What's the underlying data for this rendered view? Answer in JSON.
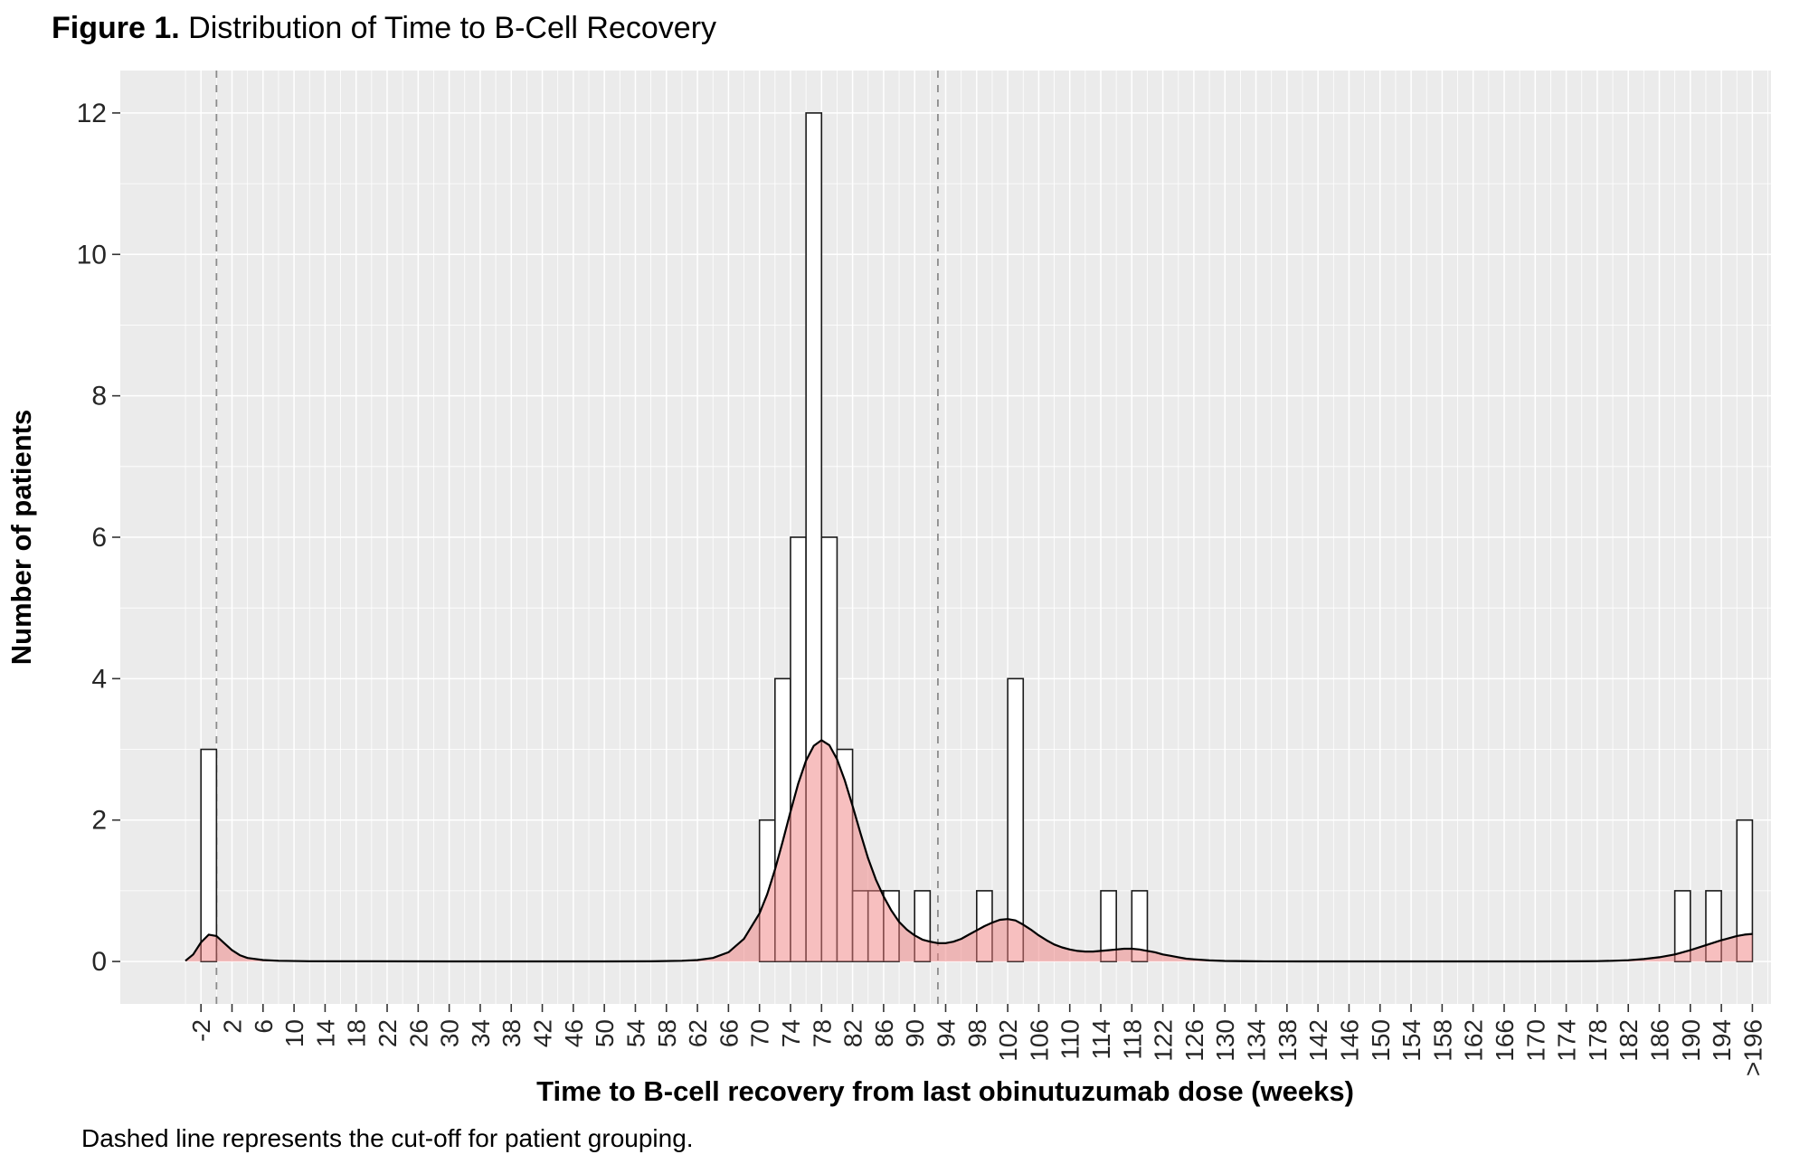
{
  "figure_title": {
    "label": "Figure 1.",
    "text": "Distribution of Time to B-Cell Recovery"
  },
  "footnote": "Dashed line represents the cut-off for patient grouping.",
  "chart_data": {
    "type": "bar",
    "subtype": "histogram_with_density_overlay",
    "title": "Figure 1. Distribution of Time to B-Cell Recovery",
    "xlabel": "Time to B-cell recovery from last obinutuzumab dose (weeks)",
    "ylabel": "Number of patients",
    "bin_width": 2,
    "x_domain": [
      -12.4,
      200.4
    ],
    "y_domain": [
      -0.6,
      12.6
    ],
    "ylim": [
      0,
      12
    ],
    "y_ticks": [
      0,
      2,
      4,
      6,
      8,
      10,
      12
    ],
    "x_tick_values": [
      -2,
      2,
      6,
      10,
      14,
      18,
      22,
      26,
      30,
      34,
      38,
      42,
      46,
      50,
      54,
      58,
      62,
      66,
      70,
      74,
      78,
      82,
      86,
      90,
      94,
      98,
      102,
      106,
      110,
      114,
      118,
      122,
      126,
      130,
      134,
      138,
      142,
      146,
      150,
      154,
      158,
      162,
      166,
      170,
      174,
      178,
      182,
      186,
      190,
      194,
      198
    ],
    "x_tick_labels": [
      "-2",
      "2",
      "6",
      "10",
      "14",
      "18",
      "22",
      "26",
      "30",
      "34",
      "38",
      "42",
      "46",
      "50",
      "54",
      "58",
      "62",
      "66",
      "70",
      "74",
      "78",
      "82",
      "86",
      "90",
      "94",
      "98",
      "102",
      "106",
      "110",
      "114",
      "118",
      "122",
      "126",
      "130",
      "134",
      "138",
      "142",
      "146",
      "150",
      "154",
      "158",
      "162",
      "166",
      "170",
      "174",
      "178",
      "182",
      "186",
      "190",
      "194",
      ">196"
    ],
    "cutoff_lines": [
      0,
      93
    ],
    "cutoff_note": "Dashed line represents the cut-off for patient grouping.",
    "bars": [
      [
        -2,
        3
      ],
      [
        70,
        2
      ],
      [
        72,
        4
      ],
      [
        74,
        6
      ],
      [
        76,
        12
      ],
      [
        78,
        6
      ],
      [
        80,
        3
      ],
      [
        82,
        1
      ],
      [
        84,
        1
      ],
      [
        86,
        1
      ],
      [
        90,
        1
      ],
      [
        98,
        1
      ],
      [
        102,
        4
      ],
      [
        114,
        1
      ],
      [
        118,
        1
      ],
      [
        188,
        1
      ],
      [
        192,
        1
      ],
      [
        196,
        2
      ]
    ],
    "density": [
      [
        -4,
        0.01
      ],
      [
        -3,
        0.1
      ],
      [
        -2,
        0.27
      ],
      [
        -1,
        0.38
      ],
      [
        0,
        0.36
      ],
      [
        1,
        0.26
      ],
      [
        2,
        0.16
      ],
      [
        3,
        0.09
      ],
      [
        4,
        0.05
      ],
      [
        6,
        0.02
      ],
      [
        8,
        0.01
      ],
      [
        12,
        0.004
      ],
      [
        20,
        0.002
      ],
      [
        30,
        0.001
      ],
      [
        40,
        0.001
      ],
      [
        50,
        0.001
      ],
      [
        56,
        0.003
      ],
      [
        60,
        0.01
      ],
      [
        62,
        0.02
      ],
      [
        64,
        0.05
      ],
      [
        66,
        0.13
      ],
      [
        68,
        0.32
      ],
      [
        70,
        0.68
      ],
      [
        71,
        0.95
      ],
      [
        72,
        1.3
      ],
      [
        73,
        1.7
      ],
      [
        74,
        2.12
      ],
      [
        75,
        2.52
      ],
      [
        76,
        2.84
      ],
      [
        77,
        3.05
      ],
      [
        78,
        3.13
      ],
      [
        79,
        3.06
      ],
      [
        80,
        2.86
      ],
      [
        81,
        2.56
      ],
      [
        82,
        2.2
      ],
      [
        83,
        1.82
      ],
      [
        84,
        1.46
      ],
      [
        85,
        1.16
      ],
      [
        86,
        0.92
      ],
      [
        87,
        0.72
      ],
      [
        88,
        0.56
      ],
      [
        89,
        0.45
      ],
      [
        90,
        0.37
      ],
      [
        91,
        0.31
      ],
      [
        92,
        0.28
      ],
      [
        93,
        0.26
      ],
      [
        94,
        0.26
      ],
      [
        95,
        0.28
      ],
      [
        96,
        0.32
      ],
      [
        97,
        0.38
      ],
      [
        98,
        0.44
      ],
      [
        99,
        0.5
      ],
      [
        100,
        0.55
      ],
      [
        101,
        0.59
      ],
      [
        102,
        0.6
      ],
      [
        103,
        0.58
      ],
      [
        104,
        0.52
      ],
      [
        105,
        0.45
      ],
      [
        106,
        0.37
      ],
      [
        107,
        0.3
      ],
      [
        108,
        0.24
      ],
      [
        109,
        0.2
      ],
      [
        110,
        0.17
      ],
      [
        111,
        0.15
      ],
      [
        112,
        0.14
      ],
      [
        113,
        0.14
      ],
      [
        114,
        0.15
      ],
      [
        115,
        0.16
      ],
      [
        116,
        0.17
      ],
      [
        117,
        0.18
      ],
      [
        118,
        0.18
      ],
      [
        119,
        0.17
      ],
      [
        120,
        0.15
      ],
      [
        121,
        0.13
      ],
      [
        122,
        0.1
      ],
      [
        123,
        0.08
      ],
      [
        124,
        0.06
      ],
      [
        125,
        0.04
      ],
      [
        126,
        0.03
      ],
      [
        128,
        0.015
      ],
      [
        130,
        0.007
      ],
      [
        134,
        0.003
      ],
      [
        140,
        0.001
      ],
      [
        150,
        0.001
      ],
      [
        160,
        0.001
      ],
      [
        170,
        0.001
      ],
      [
        175,
        0.002
      ],
      [
        178,
        0.005
      ],
      [
        180,
        0.01
      ],
      [
        182,
        0.018
      ],
      [
        184,
        0.035
      ],
      [
        186,
        0.06
      ],
      [
        188,
        0.1
      ],
      [
        190,
        0.16
      ],
      [
        192,
        0.23
      ],
      [
        194,
        0.3
      ],
      [
        196,
        0.36
      ],
      [
        197,
        0.38
      ],
      [
        198,
        0.39
      ]
    ],
    "legend": "none",
    "grid": "on",
    "colors": {
      "panel_bg": "#ebebeb",
      "grid": "#ffffff",
      "bar_fill": "#ffffff",
      "bar_stroke": "#1a1a1a",
      "density_fill": "#f08080",
      "density_stroke": "#000000",
      "cutoff": "#8c8c8c",
      "axis_tick": "#333333"
    },
    "density_opacity": 0.5
  }
}
